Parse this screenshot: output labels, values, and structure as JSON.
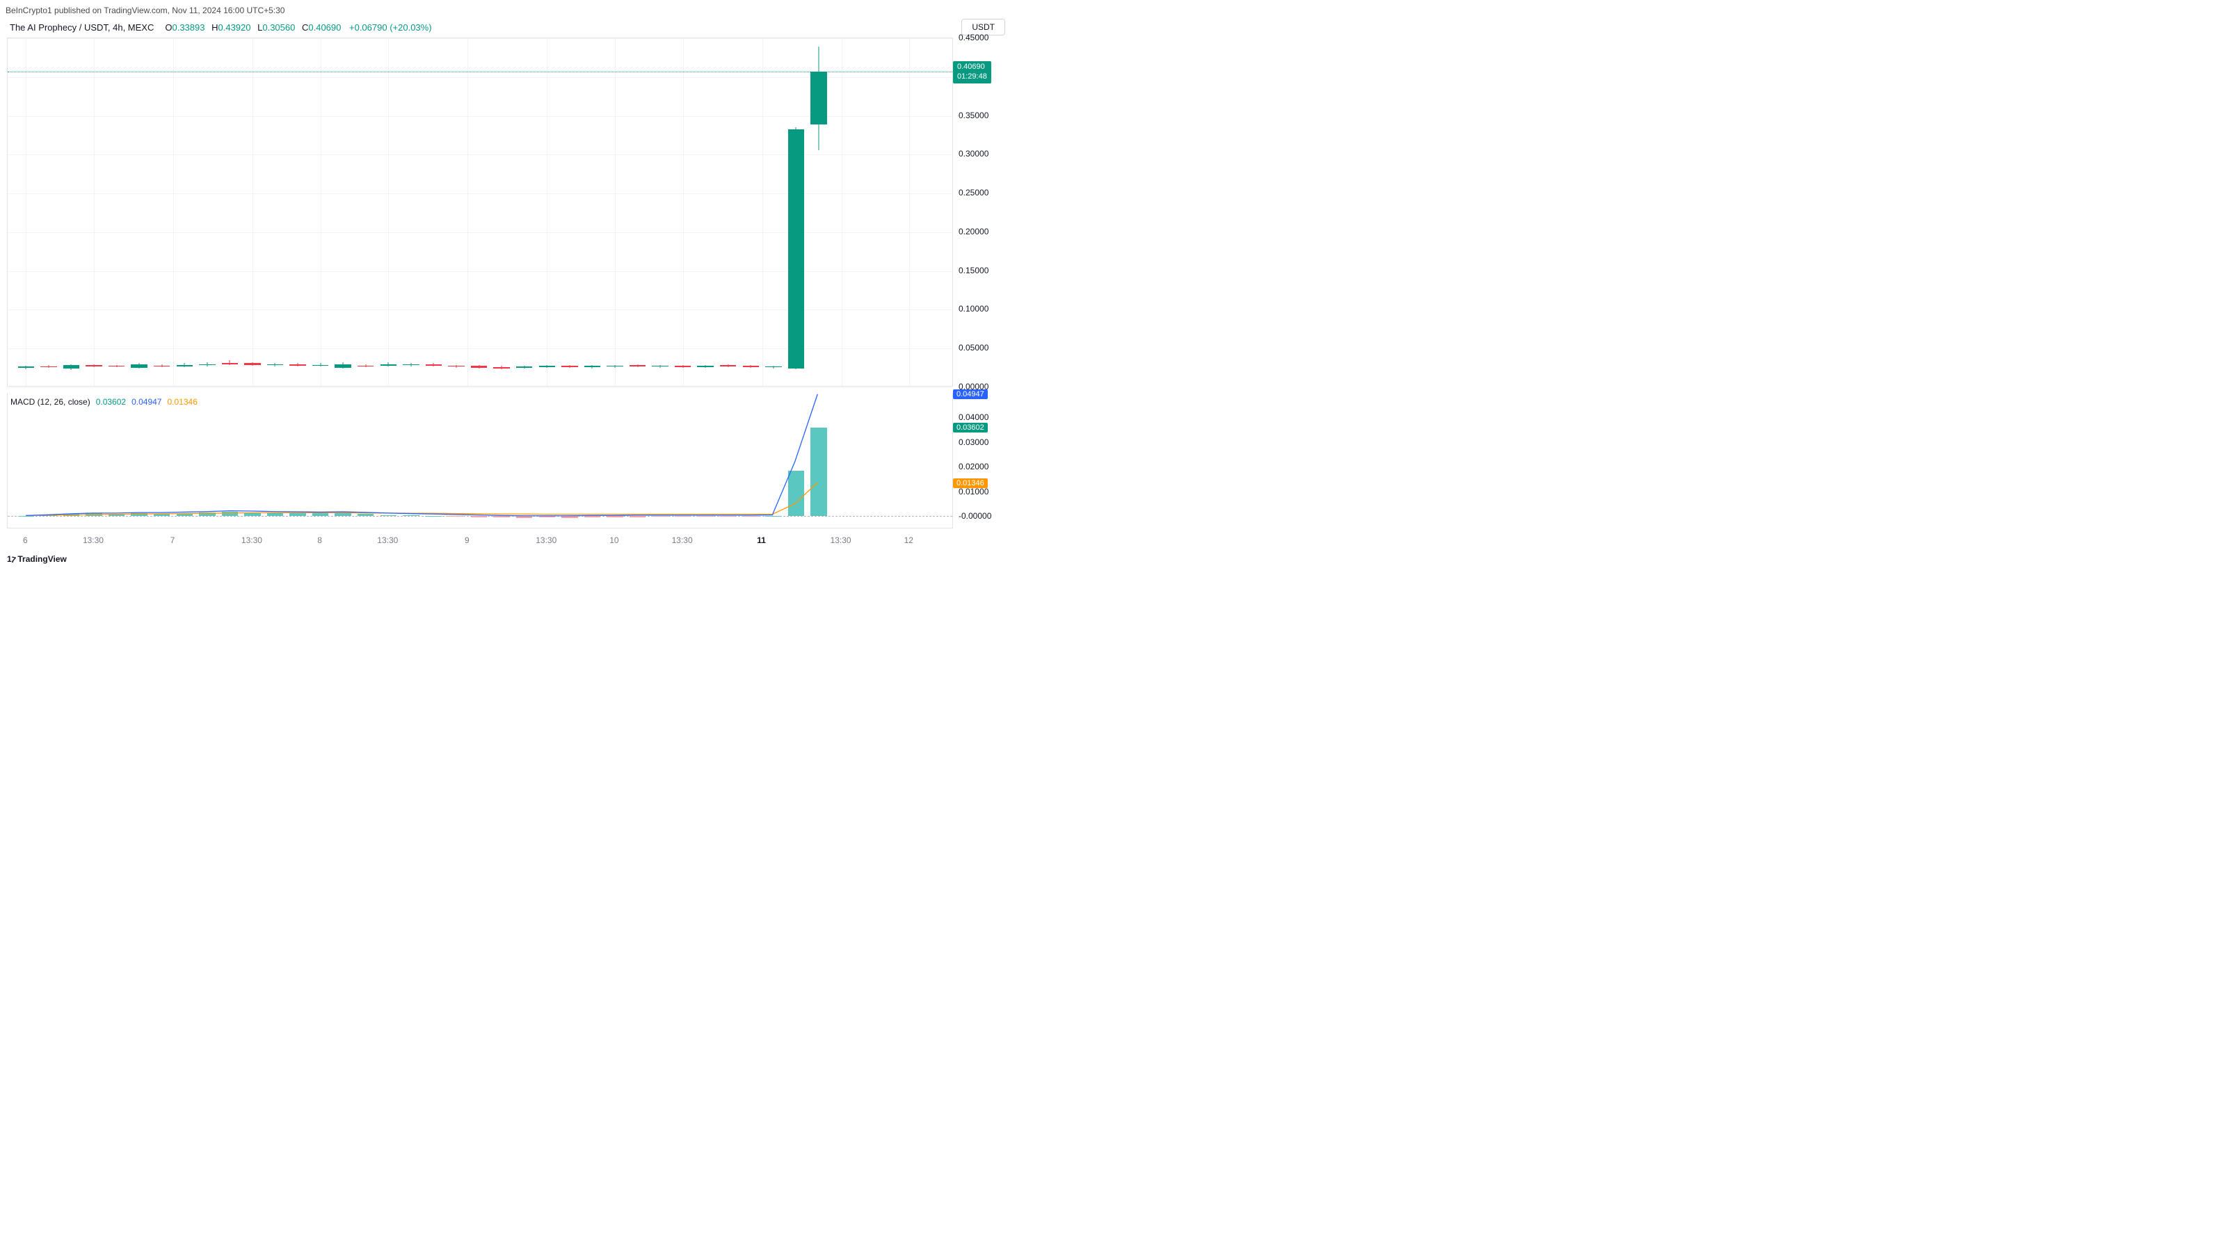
{
  "attribution": "BeInCrypto1 published on TradingView.com, Nov 11, 2024 16:00 UTC+5:30",
  "header": {
    "title": "The AI Prophecy / USDT, 4h, MEXC",
    "o_label": "O",
    "o_value": "0.33893",
    "h_label": "H",
    "h_value": "0.43920",
    "l_label": "L",
    "l_value": "0.30560",
    "c_label": "C",
    "c_value": "0.40690",
    "change": "+0.06790 (+20.03%)",
    "ohlc_color": "#089981"
  },
  "axis_unit": "USDT",
  "price_panel": {
    "y_min": 0.0,
    "y_max": 0.45,
    "y_ticks": [
      {
        "v": 0.0,
        "label": "0.00000"
      },
      {
        "v": 0.05,
        "label": "0.05000"
      },
      {
        "v": 0.1,
        "label": "0.10000"
      },
      {
        "v": 0.15,
        "label": "0.15000"
      },
      {
        "v": 0.2,
        "label": "0.20000"
      },
      {
        "v": 0.25,
        "label": "0.25000"
      },
      {
        "v": 0.3,
        "label": "0.30000"
      },
      {
        "v": 0.35,
        "label": "0.35000"
      },
      {
        "v": 0.4,
        "label": "0.40000"
      },
      {
        "v": 0.45,
        "label": "0.45000"
      }
    ],
    "x_ticks": [
      {
        "idx": 0,
        "label": "6"
      },
      {
        "idx": 3,
        "label": "13:30"
      },
      {
        "idx": 6.5,
        "label": "7"
      },
      {
        "idx": 10,
        "label": "13:30"
      },
      {
        "idx": 13,
        "label": "8"
      },
      {
        "idx": 16,
        "label": "13:30"
      },
      {
        "idx": 19.5,
        "label": "9"
      },
      {
        "idx": 23,
        "label": "13:30"
      },
      {
        "idx": 26,
        "label": "10"
      },
      {
        "idx": 29,
        "label": "13:30"
      },
      {
        "idx": 32.5,
        "label": "11",
        "bold": true
      },
      {
        "idx": 36,
        "label": "13:30"
      },
      {
        "idx": 39,
        "label": "12"
      }
    ],
    "current_price_tag": {
      "price": "0.40690",
      "countdown": "01:29:48",
      "value": 0.4069
    },
    "colors": {
      "up": "#089981",
      "down": "#f23645",
      "grid": "#f0f3fa",
      "border": "#e0e3eb"
    },
    "candle_width_ratio": 0.72,
    "candles": [
      {
        "o": 0.025,
        "h": 0.028,
        "l": 0.023,
        "c": 0.027
      },
      {
        "o": 0.027,
        "h": 0.029,
        "l": 0.025,
        "c": 0.026
      },
      {
        "o": 0.024,
        "h": 0.03,
        "l": 0.022,
        "c": 0.029
      },
      {
        "o": 0.029,
        "h": 0.03,
        "l": 0.026,
        "c": 0.027
      },
      {
        "o": 0.028,
        "h": 0.029,
        "l": 0.026,
        "c": 0.027
      },
      {
        "o": 0.025,
        "h": 0.031,
        "l": 0.024,
        "c": 0.03
      },
      {
        "o": 0.028,
        "h": 0.03,
        "l": 0.026,
        "c": 0.027
      },
      {
        "o": 0.027,
        "h": 0.031,
        "l": 0.026,
        "c": 0.029
      },
      {
        "o": 0.029,
        "h": 0.032,
        "l": 0.027,
        "c": 0.03
      },
      {
        "o": 0.031,
        "h": 0.035,
        "l": 0.029,
        "c": 0.03
      },
      {
        "o": 0.031,
        "h": 0.032,
        "l": 0.028,
        "c": 0.029
      },
      {
        "o": 0.029,
        "h": 0.031,
        "l": 0.027,
        "c": 0.03
      },
      {
        "o": 0.03,
        "h": 0.031,
        "l": 0.027,
        "c": 0.028
      },
      {
        "o": 0.028,
        "h": 0.031,
        "l": 0.027,
        "c": 0.029
      },
      {
        "o": 0.025,
        "h": 0.032,
        "l": 0.024,
        "c": 0.03
      },
      {
        "o": 0.028,
        "h": 0.03,
        "l": 0.026,
        "c": 0.027
      },
      {
        "o": 0.028,
        "h": 0.032,
        "l": 0.027,
        "c": 0.03
      },
      {
        "o": 0.029,
        "h": 0.031,
        "l": 0.027,
        "c": 0.03
      },
      {
        "o": 0.03,
        "h": 0.031,
        "l": 0.027,
        "c": 0.028
      },
      {
        "o": 0.028,
        "h": 0.029,
        "l": 0.025,
        "c": 0.027
      },
      {
        "o": 0.028,
        "h": 0.029,
        "l": 0.024,
        "c": 0.025
      },
      {
        "o": 0.026,
        "h": 0.028,
        "l": 0.023,
        "c": 0.024
      },
      {
        "o": 0.025,
        "h": 0.028,
        "l": 0.024,
        "c": 0.027
      },
      {
        "o": 0.026,
        "h": 0.029,
        "l": 0.025,
        "c": 0.028
      },
      {
        "o": 0.028,
        "h": 0.029,
        "l": 0.025,
        "c": 0.026
      },
      {
        "o": 0.026,
        "h": 0.029,
        "l": 0.024,
        "c": 0.028
      },
      {
        "o": 0.027,
        "h": 0.029,
        "l": 0.025,
        "c": 0.028
      },
      {
        "o": 0.029,
        "h": 0.03,
        "l": 0.026,
        "c": 0.027
      },
      {
        "o": 0.027,
        "h": 0.029,
        "l": 0.025,
        "c": 0.028
      },
      {
        "o": 0.028,
        "h": 0.029,
        "l": 0.025,
        "c": 0.026
      },
      {
        "o": 0.026,
        "h": 0.029,
        "l": 0.025,
        "c": 0.028
      },
      {
        "o": 0.029,
        "h": 0.03,
        "l": 0.026,
        "c": 0.027
      },
      {
        "o": 0.028,
        "h": 0.029,
        "l": 0.025,
        "c": 0.026
      },
      {
        "o": 0.026,
        "h": 0.028,
        "l": 0.024,
        "c": 0.027
      },
      {
        "o": 0.024,
        "h": 0.335,
        "l": 0.023,
        "c": 0.333
      },
      {
        "o": 0.33893,
        "h": 0.4392,
        "l": 0.3056,
        "c": 0.4069
      }
    ]
  },
  "macd_panel": {
    "title": "MACD (12, 26, close)",
    "v1": "0.03602",
    "v1_color": "#089981",
    "v2": "0.04947",
    "v2_color": "#2962ff",
    "v3": "0.01346",
    "v3_color": "#ff9800",
    "y_min": -0.005,
    "y_max": 0.05,
    "y_ticks": [
      {
        "v": 0.0,
        "label": "-0.00000"
      },
      {
        "v": 0.01,
        "label": "0.01000"
      },
      {
        "v": 0.02,
        "label": "0.02000"
      },
      {
        "v": 0.03,
        "label": "0.03000"
      },
      {
        "v": 0.04,
        "label": "0.04000"
      }
    ],
    "tags": [
      {
        "v": 0.04947,
        "label": "0.04947",
        "color": "#2962ff"
      },
      {
        "v": 0.03602,
        "label": "0.03602",
        "color": "#089981"
      },
      {
        "v": 0.01346,
        "label": "0.01346",
        "color": "#ff9800"
      }
    ],
    "histogram": [
      0,
      0.0005,
      0.001,
      0.0013,
      0.001,
      0.0012,
      0.001,
      0.0013,
      0.0015,
      0.0017,
      0.0015,
      0.0013,
      0.0012,
      0.0011,
      0.0013,
      0.001,
      0.0005,
      0.0003,
      0.0001,
      -0.0002,
      -0.0004,
      -0.0006,
      -0.0007,
      -0.0006,
      -0.0007,
      -0.0006,
      -0.0005,
      -0.0004,
      -0.0003,
      -0.0003,
      -0.0002,
      -0.0002,
      -0.0001,
      0.0001,
      0.0185,
      0.03602
    ],
    "macd_line": [
      0,
      0.0003,
      0.0007,
      0.001,
      0.001,
      0.0012,
      0.0012,
      0.0014,
      0.0016,
      0.0019,
      0.0018,
      0.0016,
      0.0015,
      0.0014,
      0.0015,
      0.0013,
      0.001,
      0.0008,
      0.0006,
      0.0004,
      0.0002,
      0.0,
      -0.0001,
      -0.0001,
      -0.0001,
      0.0,
      0.0,
      0.0001,
      0.0001,
      0.0001,
      0.0001,
      0.0001,
      0.0001,
      0.0002,
      0.022,
      0.04947
    ],
    "signal_line": [
      0,
      0.0001,
      0.0002,
      0.0004,
      0.0005,
      0.0006,
      0.0007,
      0.0008,
      0.0009,
      0.001,
      0.0011,
      0.0011,
      0.0011,
      0.0011,
      0.0011,
      0.001,
      0.001,
      0.0009,
      0.0009,
      0.0008,
      0.0007,
      0.0006,
      0.0006,
      0.0005,
      0.0005,
      0.0005,
      0.0005,
      0.0005,
      0.0005,
      0.0005,
      0.0005,
      0.0005,
      0.0005,
      0.0005,
      0.0048,
      0.01346
    ],
    "colors": {
      "hist_up": "#5ac8c1",
      "hist_down": "#f7a1a7",
      "macd": "#2962ff",
      "signal": "#ff9800"
    }
  },
  "watermark": "TradingView"
}
